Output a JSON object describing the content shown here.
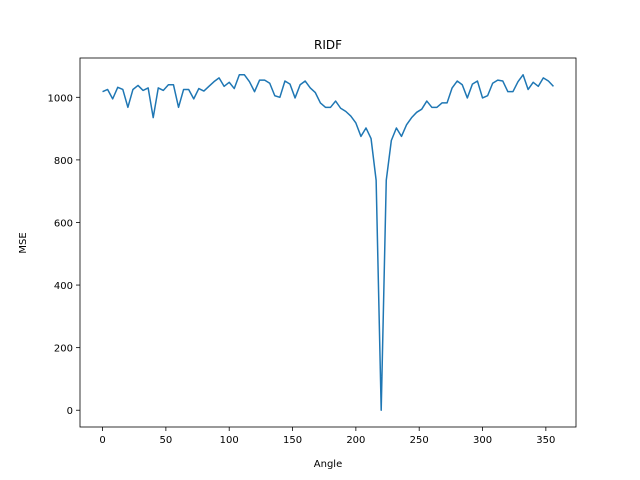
{
  "chart_data": {
    "type": "line",
    "title": "RIDF",
    "x_label": "Angle",
    "y_label": "MSE",
    "color": "#1f77b4",
    "x": [
      0,
      4,
      8,
      12,
      16,
      20,
      24,
      28,
      32,
      36,
      40,
      44,
      48,
      52,
      56,
      60,
      64,
      68,
      72,
      76,
      80,
      84,
      88,
      92,
      96,
      100,
      104,
      108,
      112,
      116,
      120,
      124,
      128,
      132,
      136,
      140,
      144,
      148,
      152,
      156,
      160,
      164,
      168,
      172,
      176,
      180,
      184,
      188,
      192,
      196,
      200,
      204,
      208,
      212,
      216,
      220,
      224,
      228,
      232,
      236,
      240,
      244,
      248,
      252,
      256,
      260,
      264,
      268,
      272,
      276,
      280,
      284,
      288,
      292,
      296,
      300,
      304,
      308,
      312,
      316,
      320,
      324,
      328,
      332,
      336,
      340,
      344,
      348,
      352,
      356
    ],
    "values": [
      1018,
      1025,
      995,
      1032,
      1025,
      968,
      1025,
      1038,
      1022,
      1030,
      935,
      1030,
      1022,
      1040,
      1040,
      968,
      1025,
      1025,
      995,
      1028,
      1020,
      1035,
      1050,
      1062,
      1035,
      1048,
      1028,
      1072,
      1072,
      1050,
      1018,
      1055,
      1055,
      1045,
      1005,
      1000,
      1052,
      1042,
      998,
      1040,
      1052,
      1030,
      1015,
      982,
      968,
      968,
      988,
      965,
      955,
      940,
      918,
      875,
      902,
      868,
      735,
      0,
      735,
      862,
      902,
      875,
      912,
      935,
      952,
      962,
      988,
      968,
      968,
      982,
      982,
      1030,
      1052,
      1040,
      998,
      1042,
      1052,
      998,
      1005,
      1045,
      1055,
      1052,
      1018,
      1018,
      1050,
      1072,
      1025,
      1048,
      1035,
      1062,
      1052,
      1035
    ],
    "xlim": [
      -17.8,
      373.8
    ],
    "ylim": [
      -53.6,
      1125.6
    ],
    "xticks": [
      0,
      50,
      100,
      150,
      200,
      250,
      300,
      350
    ],
    "yticks": [
      0,
      200,
      400,
      600,
      800,
      1000
    ]
  }
}
